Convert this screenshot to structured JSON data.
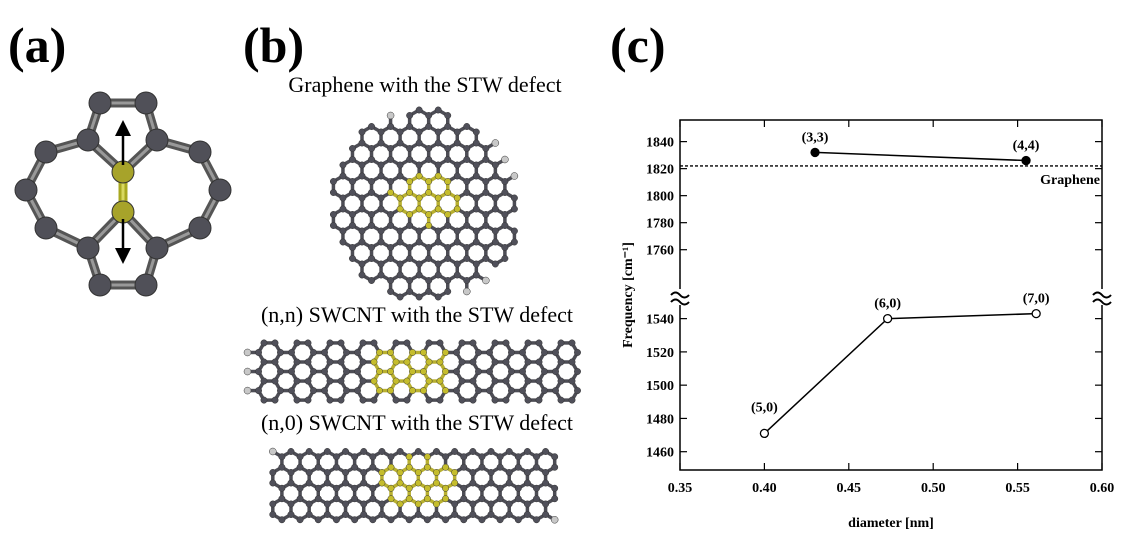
{
  "panels": {
    "a": "(a)",
    "b": "(b)",
    "c": "(c)"
  },
  "captions": [
    "Graphene with the STW defect",
    "(n,n) SWCNT with the STW defect",
    "(n,0) SWCNT with the STW defect"
  ],
  "chart_data": {
    "type": "line",
    "x_label": "diameter [nm]",
    "y_label": "Frequency [cm⁻¹]",
    "xlim": [
      0.35,
      0.6
    ],
    "xticks": [
      0.35,
      {
        "value": 0.4,
        "label": "0.40"
      },
      0.45,
      {
        "value": 0.5,
        "label": "0.50"
      },
      0.55,
      {
        "value": 0.6,
        "label": "0.60"
      }
    ],
    "y_segments": [
      {
        "ylim": [
          1725,
          1856
        ],
        "yticks": [
          1760,
          1780,
          1800,
          1820,
          1840
        ]
      },
      {
        "ylim": [
          1449,
          1553
        ],
        "yticks": [
          1460,
          1480,
          1500,
          1520,
          1540
        ]
      }
    ],
    "reference_line": {
      "value": 1822,
      "label": "Graphene"
    },
    "series": [
      {
        "marker": "filled",
        "color": "#000000",
        "labels": [
          "(3,3)",
          "(4,4)"
        ],
        "x": [
          0.43,
          0.555
        ],
        "values": [
          1832,
          1826
        ]
      },
      {
        "marker": "open",
        "color": "#000000",
        "labels": [
          "(5,0)",
          "(6,0)",
          "(7,0)"
        ],
        "x": [
          0.4,
          0.473,
          0.561
        ],
        "values": [
          1471,
          1540,
          1543
        ]
      }
    ]
  }
}
